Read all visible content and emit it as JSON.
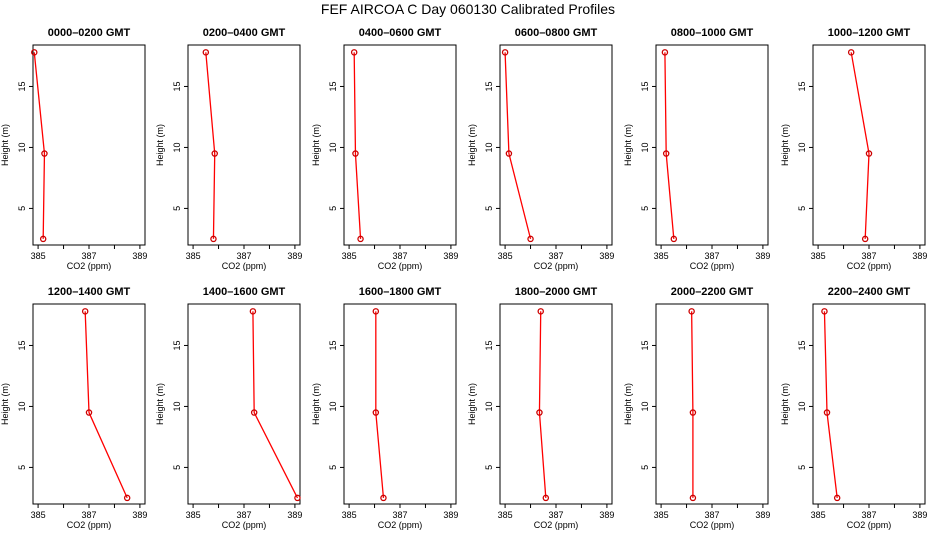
{
  "figure": {
    "title": "FEF AIRCOA C  Day 060130  Calibrated Profiles"
  },
  "theme": {
    "line_color": "#ff0000",
    "marker_color": "#cc0000",
    "axis_color": "#000000"
  },
  "chart_data": [
    {
      "type": "line",
      "title": "0000–0200 GMT",
      "xlabel": "CO2 (ppm)",
      "ylabel": "Height (m)",
      "xlim": [
        384.8,
        389.2
      ],
      "ylim": [
        2.0,
        18.4
      ],
      "xticks": [
        385,
        386,
        387,
        388,
        389
      ],
      "xtick_labels": [
        "385",
        "",
        "387",
        "",
        "389"
      ],
      "yticks": [
        5,
        10,
        15
      ],
      "ytick_labels": [
        "5",
        "10",
        "15"
      ],
      "x": [
        384.85,
        385.25,
        385.2
      ],
      "y": [
        17.8,
        9.5,
        2.5
      ]
    },
    {
      "type": "line",
      "title": "0200–0400 GMT",
      "xlabel": "CO2 (ppm)",
      "ylabel": "Height (m)",
      "xlim": [
        384.8,
        389.2
      ],
      "ylim": [
        2.0,
        18.4
      ],
      "xticks": [
        385,
        386,
        387,
        388,
        389
      ],
      "xtick_labels": [
        "385",
        "",
        "387",
        "",
        "389"
      ],
      "yticks": [
        5,
        10,
        15
      ],
      "ytick_labels": [
        "5",
        "10",
        "15"
      ],
      "x": [
        385.5,
        385.85,
        385.8
      ],
      "y": [
        17.8,
        9.5,
        2.5
      ]
    },
    {
      "type": "line",
      "title": "0400–0600 GMT",
      "xlabel": "CO2 (ppm)",
      "ylabel": "Height (m)",
      "xlim": [
        384.8,
        389.2
      ],
      "ylim": [
        2.0,
        18.4
      ],
      "xticks": [
        385,
        386,
        387,
        388,
        389
      ],
      "xtick_labels": [
        "385",
        "",
        "387",
        "",
        "389"
      ],
      "yticks": [
        5,
        10,
        15
      ],
      "ytick_labels": [
        "5",
        "10",
        "15"
      ],
      "x": [
        385.2,
        385.25,
        385.45
      ],
      "y": [
        17.8,
        9.5,
        2.5
      ]
    },
    {
      "type": "line",
      "title": "0600–0800 GMT",
      "xlabel": "CO2 (ppm)",
      "ylabel": "Height (m)",
      "xlim": [
        384.8,
        389.2
      ],
      "ylim": [
        2.0,
        18.4
      ],
      "xticks": [
        385,
        386,
        387,
        388,
        389
      ],
      "xtick_labels": [
        "385",
        "",
        "387",
        "",
        "389"
      ],
      "yticks": [
        5,
        10,
        15
      ],
      "ytick_labels": [
        "5",
        "10",
        "15"
      ],
      "x": [
        385.0,
        385.15,
        386.0
      ],
      "y": [
        17.8,
        9.5,
        2.5
      ]
    },
    {
      "type": "line",
      "title": "0800–1000 GMT",
      "xlabel": "CO2 (ppm)",
      "ylabel": "Height (m)",
      "xlim": [
        384.8,
        389.2
      ],
      "ylim": [
        2.0,
        18.4
      ],
      "xticks": [
        385,
        386,
        387,
        388,
        389
      ],
      "xtick_labels": [
        "385",
        "",
        "387",
        "",
        "389"
      ],
      "yticks": [
        5,
        10,
        15
      ],
      "ytick_labels": [
        "5",
        "10",
        "15"
      ],
      "x": [
        385.15,
        385.2,
        385.5
      ],
      "y": [
        17.8,
        9.5,
        2.5
      ]
    },
    {
      "type": "line",
      "title": "1000–1200 GMT",
      "xlabel": "CO2 (ppm)",
      "ylabel": "Height (m)",
      "xlim": [
        384.8,
        389.2
      ],
      "ylim": [
        2.0,
        18.4
      ],
      "xticks": [
        385,
        386,
        387,
        388,
        389
      ],
      "xtick_labels": [
        "385",
        "",
        "387",
        "",
        "389"
      ],
      "yticks": [
        5,
        10,
        15
      ],
      "ytick_labels": [
        "5",
        "10",
        "15"
      ],
      "x": [
        386.3,
        387.0,
        386.85
      ],
      "y": [
        17.8,
        9.5,
        2.5
      ]
    },
    {
      "type": "line",
      "title": "1200–1400 GMT",
      "xlabel": "CO2 (ppm)",
      "ylabel": "Height (m)",
      "xlim": [
        384.8,
        389.2
      ],
      "ylim": [
        2.0,
        18.4
      ],
      "xticks": [
        385,
        386,
        387,
        388,
        389
      ],
      "xtick_labels": [
        "385",
        "",
        "387",
        "",
        "389"
      ],
      "yticks": [
        5,
        10,
        15
      ],
      "ytick_labels": [
        "5",
        "10",
        "15"
      ],
      "x": [
        386.85,
        387.0,
        388.5
      ],
      "y": [
        17.8,
        9.5,
        2.5
      ]
    },
    {
      "type": "line",
      "title": "1400–1600 GMT",
      "xlabel": "CO2 (ppm)",
      "ylabel": "Height (m)",
      "xlim": [
        384.8,
        389.2
      ],
      "ylim": [
        2.0,
        18.4
      ],
      "xticks": [
        385,
        386,
        387,
        388,
        389
      ],
      "xtick_labels": [
        "385",
        "",
        "387",
        "",
        "389"
      ],
      "yticks": [
        5,
        10,
        15
      ],
      "ytick_labels": [
        "5",
        "10",
        "15"
      ],
      "x": [
        387.35,
        387.4,
        389.1
      ],
      "y": [
        17.8,
        9.5,
        2.5
      ]
    },
    {
      "type": "line",
      "title": "1600–1800 GMT",
      "xlabel": "CO2 (ppm)",
      "ylabel": "Height (m)",
      "xlim": [
        384.8,
        389.2
      ],
      "ylim": [
        2.0,
        18.4
      ],
      "xticks": [
        385,
        386,
        387,
        388,
        389
      ],
      "xtick_labels": [
        "385",
        "",
        "387",
        "",
        "389"
      ],
      "yticks": [
        5,
        10,
        15
      ],
      "ytick_labels": [
        "5",
        "10",
        "15"
      ],
      "x": [
        386.05,
        386.05,
        386.35
      ],
      "y": [
        17.8,
        9.5,
        2.5
      ]
    },
    {
      "type": "line",
      "title": "1800–2000 GMT",
      "xlabel": "CO2 (ppm)",
      "ylabel": "Height (m)",
      "xlim": [
        384.8,
        389.2
      ],
      "ylim": [
        2.0,
        18.4
      ],
      "xticks": [
        385,
        386,
        387,
        388,
        389
      ],
      "xtick_labels": [
        "385",
        "",
        "387",
        "",
        "389"
      ],
      "yticks": [
        5,
        10,
        15
      ],
      "ytick_labels": [
        "5",
        "10",
        "15"
      ],
      "x": [
        386.4,
        386.35,
        386.6
      ],
      "y": [
        17.8,
        9.5,
        2.5
      ]
    },
    {
      "type": "line",
      "title": "2000–2200 GMT",
      "xlabel": "CO2 (ppm)",
      "ylabel": "Height (m)",
      "xlim": [
        384.8,
        389.2
      ],
      "ylim": [
        2.0,
        18.4
      ],
      "xticks": [
        385,
        386,
        387,
        388,
        389
      ],
      "xtick_labels": [
        "385",
        "",
        "387",
        "",
        "389"
      ],
      "yticks": [
        5,
        10,
        15
      ],
      "ytick_labels": [
        "5",
        "10",
        "15"
      ],
      "x": [
        386.2,
        386.25,
        386.25
      ],
      "y": [
        17.8,
        9.5,
        2.5
      ]
    },
    {
      "type": "line",
      "title": "2200–2400 GMT",
      "xlabel": "CO2 (ppm)",
      "ylabel": "Height (m)",
      "xlim": [
        384.8,
        389.2
      ],
      "ylim": [
        2.0,
        18.4
      ],
      "xticks": [
        385,
        386,
        387,
        388,
        389
      ],
      "xtick_labels": [
        "385",
        "",
        "387",
        "",
        "389"
      ],
      "yticks": [
        5,
        10,
        15
      ],
      "ytick_labels": [
        "5",
        "10",
        "15"
      ],
      "x": [
        385.25,
        385.35,
        385.75
      ],
      "y": [
        17.8,
        9.5,
        2.5
      ]
    }
  ]
}
